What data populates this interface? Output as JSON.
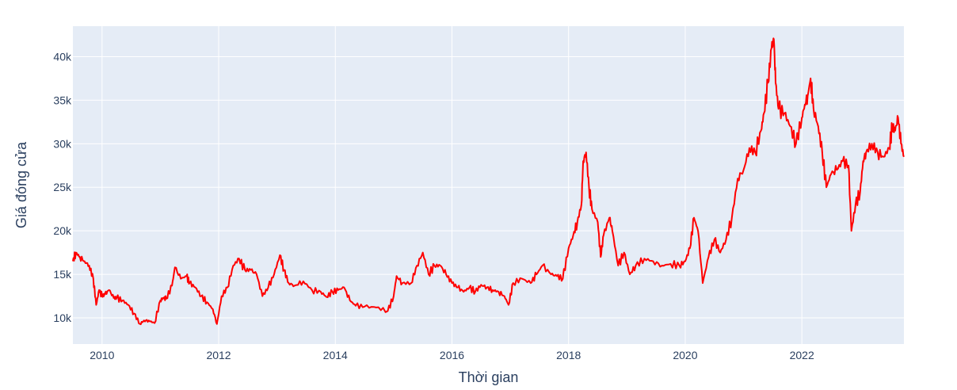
{
  "chart_data": {
    "type": "line",
    "xlabel": "Thời gian",
    "ylabel": "Giá đóng cửa",
    "xlim": [
      2009.5,
      2023.75
    ],
    "ylim": [
      7000,
      43500
    ],
    "x_ticks": [
      2010,
      2012,
      2014,
      2016,
      2018,
      2020,
      2022
    ],
    "x_tick_labels": [
      "2010",
      "2012",
      "2014",
      "2016",
      "2018",
      "2020",
      "2022"
    ],
    "y_ticks": [
      10000,
      15000,
      20000,
      25000,
      30000,
      35000,
      40000
    ],
    "y_tick_labels": [
      "10k",
      "15k",
      "20k",
      "25k",
      "30k",
      "35k",
      "40k"
    ],
    "grid": true,
    "colors": {
      "line": "#ff0000",
      "plot_bg": "#e5ecf6",
      "grid": "#ffffff",
      "text": "#2a3f5f"
    },
    "series": [
      {
        "x": [
          2009.5,
          2009.55,
          2009.62,
          2009.7,
          2009.78,
          2009.85,
          2009.9,
          2009.95,
          2010.0,
          2010.05,
          2010.12,
          2010.2,
          2010.25,
          2010.35,
          2010.45,
          2010.55,
          2010.65,
          2010.72,
          2010.8,
          2010.9,
          2011.0,
          2011.05,
          2011.1,
          2011.2,
          2011.25,
          2011.35,
          2011.45,
          2011.5,
          2011.6,
          2011.7,
          2011.8,
          2011.9,
          2011.97,
          2012.05,
          2012.15,
          2012.25,
          2012.35,
          2012.45,
          2012.55,
          2012.65,
          2012.75,
          2012.85,
          2012.95,
          2013.05,
          2013.12,
          2013.2,
          2013.3,
          2013.45,
          2013.6,
          2013.75,
          2013.85,
          2013.95,
          2014.05,
          2014.15,
          2014.25,
          2014.35,
          2014.5,
          2014.7,
          2014.9,
          2015.0,
          2015.05,
          2015.15,
          2015.3,
          2015.4,
          2015.5,
          2015.6,
          2015.7,
          2015.8,
          2015.9,
          2016.0,
          2016.1,
          2016.2,
          2016.3,
          2016.4,
          2016.5,
          2016.6,
          2016.7,
          2016.8,
          2016.9,
          2016.97,
          2017.05,
          2017.2,
          2017.35,
          2017.45,
          2017.55,
          2017.7,
          2017.8,
          2017.9,
          2018.0,
          2018.08,
          2018.15,
          2018.22,
          2018.25,
          2018.3,
          2018.35,
          2018.4,
          2018.5,
          2018.55,
          2018.6,
          2018.7,
          2018.75,
          2018.85,
          2018.95,
          2019.05,
          2019.15,
          2019.3,
          2019.45,
          2019.6,
          2019.75,
          2019.9,
          2020.0,
          2020.08,
          2020.15,
          2020.22,
          2020.3,
          2020.4,
          2020.5,
          2020.6,
          2020.7,
          2020.8,
          2020.9,
          2021.0,
          2021.1,
          2021.2,
          2021.3,
          2021.35,
          2021.42,
          2021.48,
          2021.52,
          2021.55,
          2021.6,
          2021.7,
          2021.8,
          2021.9,
          2022.0,
          2022.05,
          2022.1,
          2022.15,
          2022.2,
          2022.28,
          2022.35,
          2022.42,
          2022.5,
          2022.6,
          2022.7,
          2022.8,
          2022.85,
          2022.92,
          2023.0,
          2023.05,
          2023.1,
          2023.2,
          2023.3,
          2023.4,
          2023.5,
          2023.55,
          2023.6,
          2023.65,
          2023.7,
          2023.75
        ],
        "y": [
          16500,
          17500,
          17000,
          16500,
          16000,
          14500,
          11500,
          13200,
          12500,
          12700,
          13200,
          12300,
          12300,
          12000,
          11500,
          10500,
          9300,
          9700,
          9700,
          9400,
          12000,
          12300,
          12200,
          13700,
          15800,
          14500,
          14800,
          14000,
          13500,
          12500,
          11800,
          11000,
          9300,
          12500,
          13500,
          16000,
          16800,
          15500,
          15500,
          15000,
          12500,
          13500,
          15000,
          17200,
          15500,
          14000,
          13700,
          14200,
          13200,
          13000,
          12400,
          13000,
          13200,
          13500,
          12000,
          11400,
          11300,
          11200,
          10800,
          12500,
          14800,
          14000,
          14000,
          16000,
          17500,
          15000,
          16000,
          16000,
          15000,
          14000,
          13500,
          13000,
          13500,
          13000,
          13800,
          13500,
          13200,
          13000,
          12500,
          11500,
          14000,
          14500,
          14000,
          15000,
          16000,
          15000,
          14800,
          14500,
          18000,
          19500,
          21000,
          23000,
          28000,
          29000,
          25000,
          22500,
          21000,
          17000,
          19500,
          21500,
          20000,
          16000,
          17500,
          15000,
          16000,
          16800,
          16500,
          16000,
          16200,
          16000,
          16500,
          18000,
          21500,
          20000,
          14000,
          17000,
          19000,
          17500,
          19000,
          21500,
          26000,
          27000,
          29500,
          29000,
          31500,
          33500,
          37000,
          41000,
          42000,
          37000,
          34000,
          33500,
          32000,
          30000,
          33000,
          34500,
          35500,
          37500,
          34000,
          32000,
          29000,
          25000,
          26500,
          27000,
          28000,
          27500,
          20000,
          23000,
          24500,
          28000,
          29000,
          30000,
          29000,
          28500,
          29500,
          32000,
          31500,
          33000,
          30000,
          28500
        ]
      }
    ]
  }
}
